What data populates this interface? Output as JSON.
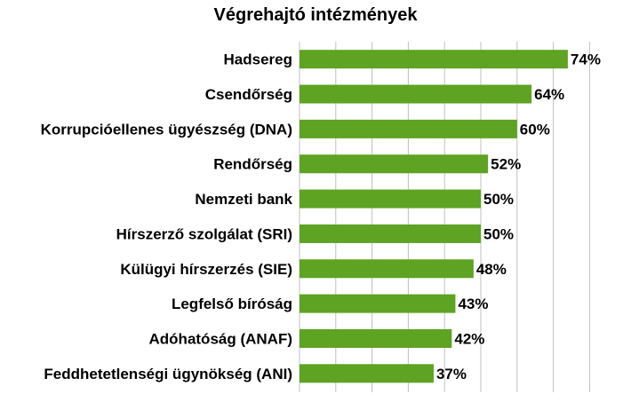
{
  "chart_data": {
    "type": "bar",
    "orientation": "horizontal",
    "title": "Végrehajtó intézmények",
    "categories": [
      "Hadsereg",
      "Csendőrség",
      "Korrupcióellenes ügyészség (DNA)",
      "Rendőrség",
      "Nemzeti bank",
      "Hírszerző szolgálat (SRI)",
      "Külügyi hírszerzés (SIE)",
      "Legfelső bíróság",
      "Adóhatóság (ANAF)",
      "Feddhetetlenségi ügynökség (ANI)"
    ],
    "values": [
      74,
      64,
      60,
      52,
      50,
      50,
      48,
      43,
      42,
      37
    ],
    "value_labels": [
      "74%",
      "64%",
      "60%",
      "52%",
      "50%",
      "50%",
      "48%",
      "43%",
      "42%",
      "37%"
    ],
    "xlim": [
      0,
      80
    ],
    "grid": true,
    "bar_color": "#5ea322",
    "grid_color": "#c0c0c0"
  }
}
